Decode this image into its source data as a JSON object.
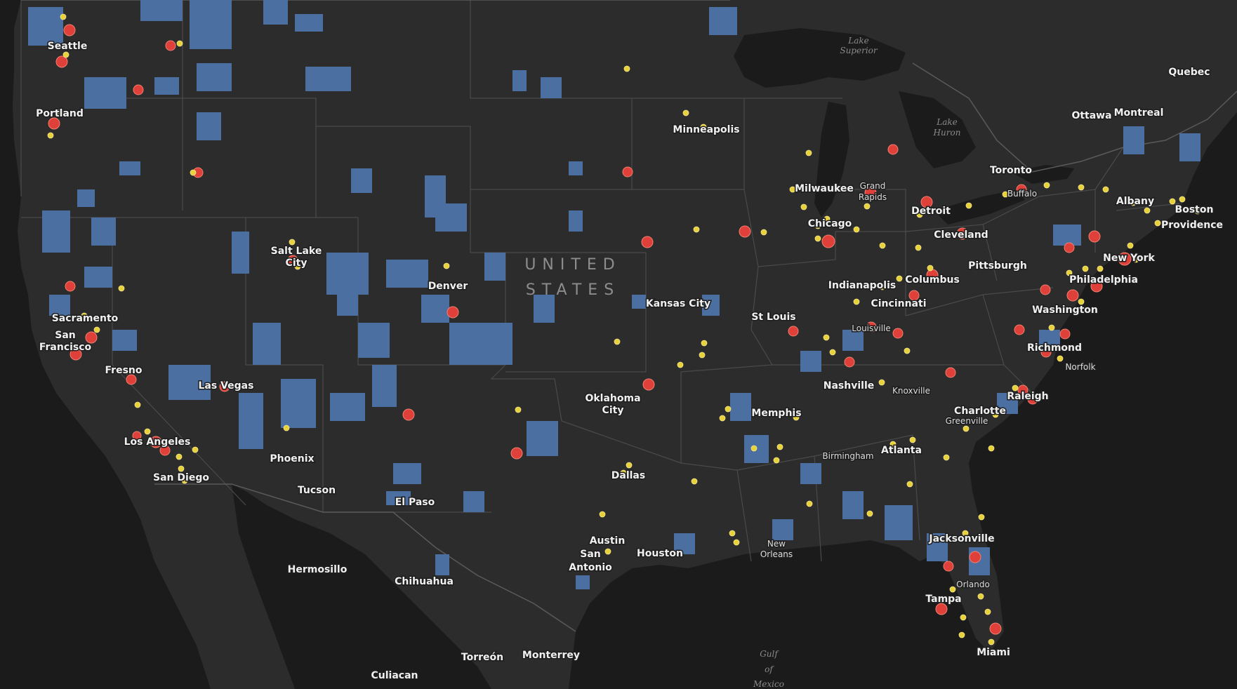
{
  "map": {
    "country_label_line1": "UNITED",
    "country_label_line2": "STATES",
    "colors": {
      "land": "#2c2c2c",
      "water": "#1b1b1b",
      "blue_regions": "#4a6fa0",
      "red_points": "#e0403a",
      "yellow_points": "#e8d23c"
    },
    "water_labels": [
      "Lake",
      "Superior",
      "Lake",
      "Huron",
      "Gulf",
      "of",
      "Mexico"
    ],
    "cities": [
      "Seattle",
      "Portland",
      "Sacramento",
      "San",
      "Francisco",
      "Fresno",
      "Las Vegas",
      "Los Angeles",
      "San Diego",
      "Salt Lake",
      "City",
      "Denver",
      "Phoenix",
      "Tucson",
      "El Paso",
      "Minneapolis",
      "Kansas City",
      "Oklahoma",
      "City",
      "Dallas",
      "Austin",
      "San",
      "Antonio",
      "Houston",
      "Milwaukee",
      "Chicago",
      "Grand",
      "Rapids",
      "Detroit",
      "Indianapolis",
      "Columbus",
      "Cleveland",
      "Pittsburgh",
      "Cincinnati",
      "Louisville",
      "St Louis",
      "Nashville",
      "Knoxville",
      "Memphis",
      "Atlanta",
      "Birmingham",
      "New",
      "Orleans",
      "Jacksonville",
      "Orlando",
      "Tampa",
      "Miami",
      "Charlotte",
      "Greenville",
      "Raleigh",
      "Richmond",
      "Norfolk",
      "Washington",
      "Philadelphia",
      "New York",
      "Boston",
      "Providence",
      "Albany",
      "Buffalo",
      "Toronto",
      "Ottawa",
      "Montreal",
      "Quebec",
      "Hermosillo",
      "Chihuahua",
      "Torreón",
      "Monterrey",
      "Culiacan"
    ]
  }
}
